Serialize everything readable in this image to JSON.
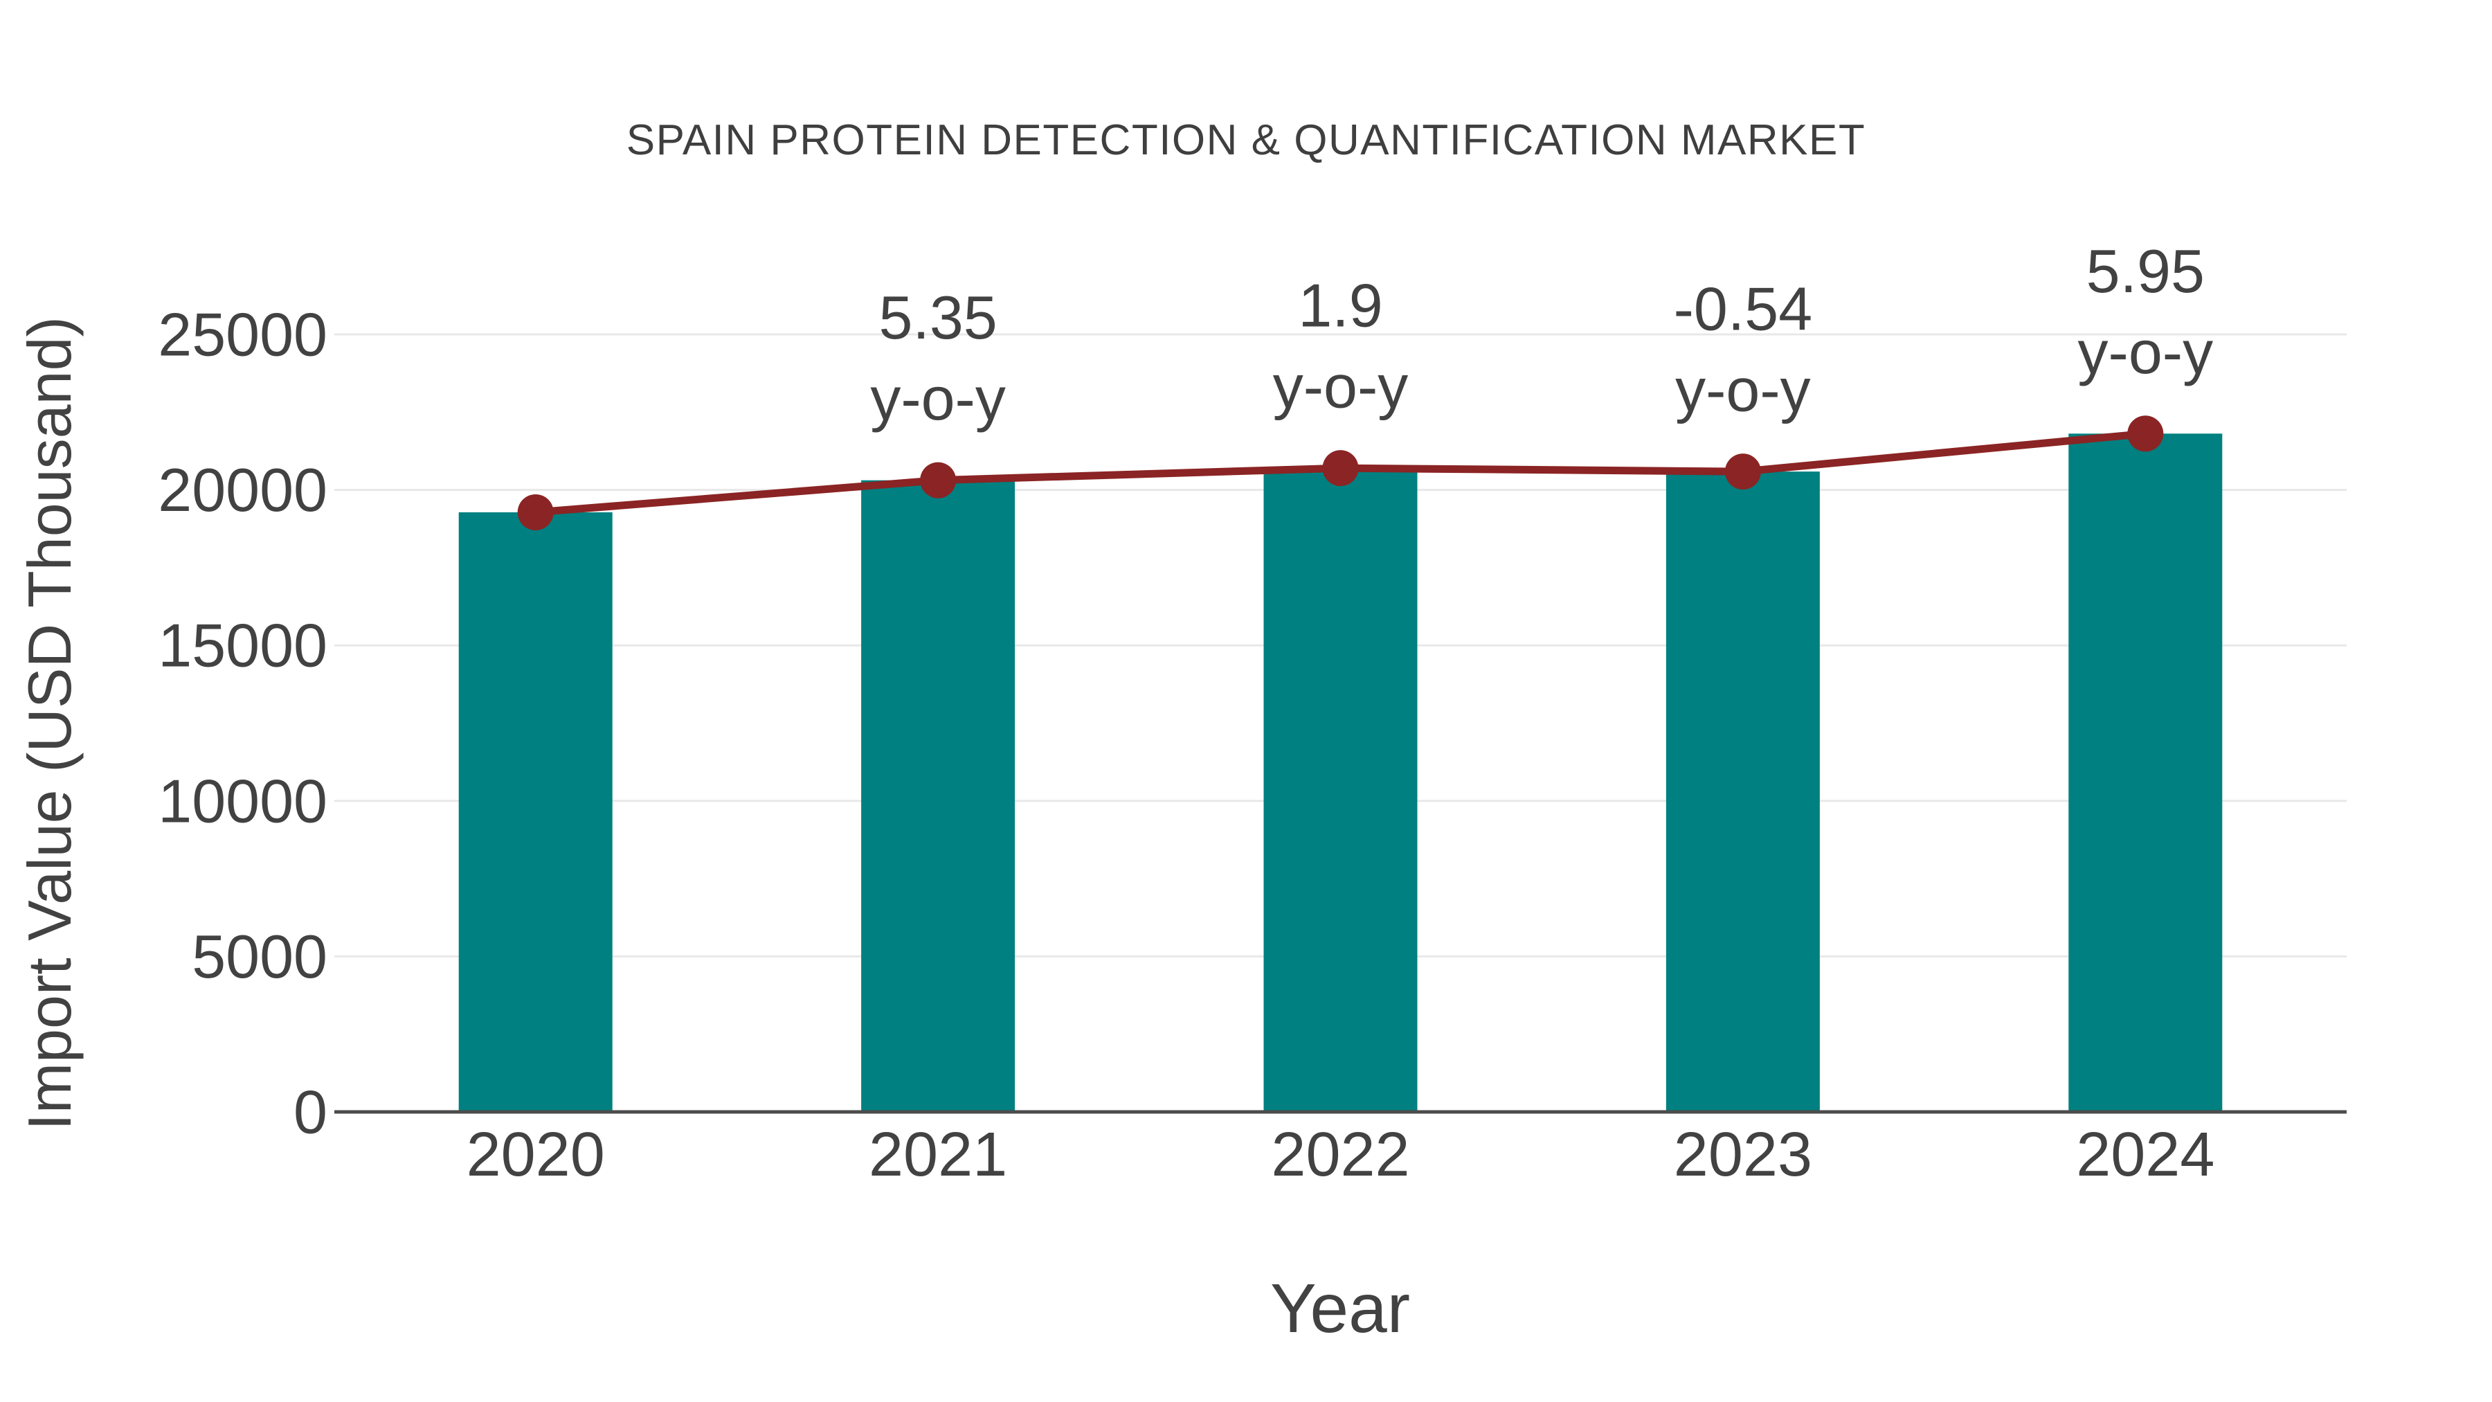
{
  "title": "SPAIN PROTEIN DETECTION & QUANTIFICATION MARKET",
  "x_axis_title": "Year",
  "y_axis_title": "Import Value (USD Thousand)",
  "chart_data": {
    "type": "bar",
    "title": "SPAIN PROTEIN DETECTION & QUANTIFICATION MARKET",
    "xlabel": "Year",
    "ylabel": "Import Value (USD Thousand)",
    "categories": [
      "2020",
      "2021",
      "2022",
      "2023",
      "2024"
    ],
    "series": [
      {
        "name": "Import Value (USD Thousand)",
        "type": "bar",
        "values": [
          19280,
          20310,
          20700,
          20590,
          21810
        ],
        "color": "#008080"
      },
      {
        "name": "Import Value trend",
        "type": "line",
        "values": [
          19280,
          20310,
          20700,
          20590,
          21810
        ],
        "color": "#8b2424"
      }
    ],
    "yoy_percent": [
      null,
      5.35,
      1.9,
      -0.54,
      5.95
    ],
    "annotations": [
      {
        "category": "2021",
        "line1": "5.35",
        "line2": "y-o-y"
      },
      {
        "category": "2022",
        "line1": "1.9",
        "line2": "y-o-y"
      },
      {
        "category": "2023",
        "line1": "-0.54",
        "line2": "y-o-y"
      },
      {
        "category": "2024",
        "line1": "5.95",
        "line2": "y-o-y"
      }
    ],
    "ylim": [
      0,
      25000
    ],
    "ytick_step": 5000,
    "yticks": [
      "0",
      "5000",
      "10000",
      "15000",
      "20000",
      "25000"
    ],
    "grid": true,
    "legend_position": "none",
    "colors": {
      "bar": "#008080",
      "line": "#8b2424",
      "marker": "#8b2424",
      "text": "#424242",
      "title_text": "#3f3f3f",
      "grid": "#e8e8e8",
      "axis": "#4c4c4c",
      "background": "#ffffff"
    }
  }
}
